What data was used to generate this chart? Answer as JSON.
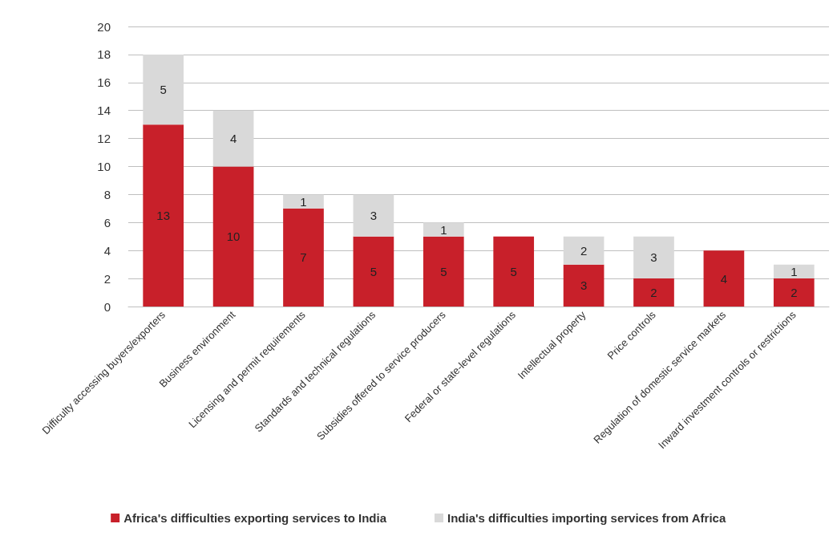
{
  "chart_data": {
    "type": "bar",
    "stacked": true,
    "categories": [
      "Difficulty accessing buyers/exporters",
      "Business environment",
      "Licensing and permit requirements",
      "Standards and technical regulations",
      "Subsidies offered to service producers",
      "Federal or state-level regulations",
      "Intellectual property",
      "Price controls",
      "Regulation of domestic service markets",
      "Inward investment controls or restrictions"
    ],
    "series": [
      {
        "name": "Africa's difficulties exporting services to India",
        "color": "#c8202a",
        "values": [
          13,
          10,
          7,
          5,
          5,
          5,
          3,
          2,
          4,
          2
        ]
      },
      {
        "name": "India's difficulties importing services from Africa",
        "color": "#d9d9d9",
        "values": [
          5,
          4,
          1,
          3,
          1,
          null,
          2,
          3,
          null,
          1
        ]
      }
    ],
    "ylim": [
      0,
      20
    ],
    "yticks": [
      0,
      2,
      4,
      6,
      8,
      10,
      12,
      14,
      16,
      18,
      20
    ],
    "grid": "y",
    "legend": "bottom",
    "data_labels": true
  }
}
